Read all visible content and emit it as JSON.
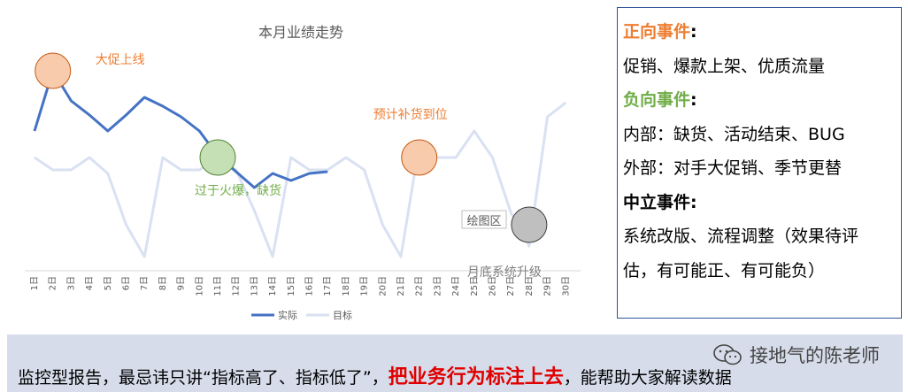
{
  "chart_data": {
    "type": "line",
    "title": "本月业绩走势",
    "categories": [
      "1日",
      "2日",
      "3日",
      "4日",
      "5日",
      "6日",
      "7日",
      "8日",
      "9日",
      "10日",
      "11日",
      "12日",
      "13日",
      "14日",
      "15日",
      "16日",
      "17日",
      "18日",
      "19日",
      "20日",
      "21日",
      "22日",
      "23日",
      "24日",
      "25日",
      "26日",
      "27日",
      "28日",
      "29日",
      "30日"
    ],
    "series": [
      {
        "name": "实际",
        "color": "#4472c4",
        "values": [
          60,
          94,
          77,
          69,
          60,
          69,
          79,
          74,
          68,
          60,
          46,
          37,
          28,
          36,
          32,
          36,
          37,
          null,
          null,
          null,
          null,
          null,
          null,
          null,
          null,
          null,
          null,
          null,
          null,
          null
        ]
      },
      {
        "name": "目标",
        "color": "#d9e1f2",
        "values": [
          45,
          38,
          38,
          45,
          36,
          7,
          -11,
          45,
          38,
          38,
          45,
          38,
          15,
          -11,
          45,
          38,
          38,
          45,
          38,
          7,
          -11,
          52,
          45,
          45,
          60,
          45,
          14,
          -5,
          68,
          76
        ]
      }
    ],
    "annotations": [
      {
        "label": "大促上线",
        "color": "#ed7d31",
        "x": "2日",
        "y": 94
      },
      {
        "label": "过于火爆，缺货",
        "color": "#70ad47",
        "x": "11日",
        "y": 45
      },
      {
        "label": "预计补货到位",
        "color": "#ed7d31",
        "x": "22日",
        "y": 45
      },
      {
        "label": "月底系统升级",
        "color": "#7f7f7f",
        "x": "28日",
        "y": 7
      }
    ],
    "plot_area_label": "绘图区",
    "legend_position": "bottom",
    "grid": false
  },
  "events": {
    "positive_title": "正向事件",
    "positive_items": "促销、爆款上架、优质流量",
    "negative_title": "负向事件",
    "negative_internal": "内部：缺货、活动结束、BUG",
    "negative_external": "外部：对手大促销、季节更替",
    "neutral_title": "中立事件",
    "neutral_items_1": "系统改版、流程调整（效果待评",
    "neutral_items_2": "估，有可能正、有可能负）",
    "colon": ":"
  },
  "footer": {
    "text_before": "监控型报告，最忌讳只讲“指标高了、指标低了”，",
    "text_emphasis": "把业务行为标注上去",
    "text_after": "，能帮助大家解读数据",
    "watermark": "接地气的陈老师"
  }
}
